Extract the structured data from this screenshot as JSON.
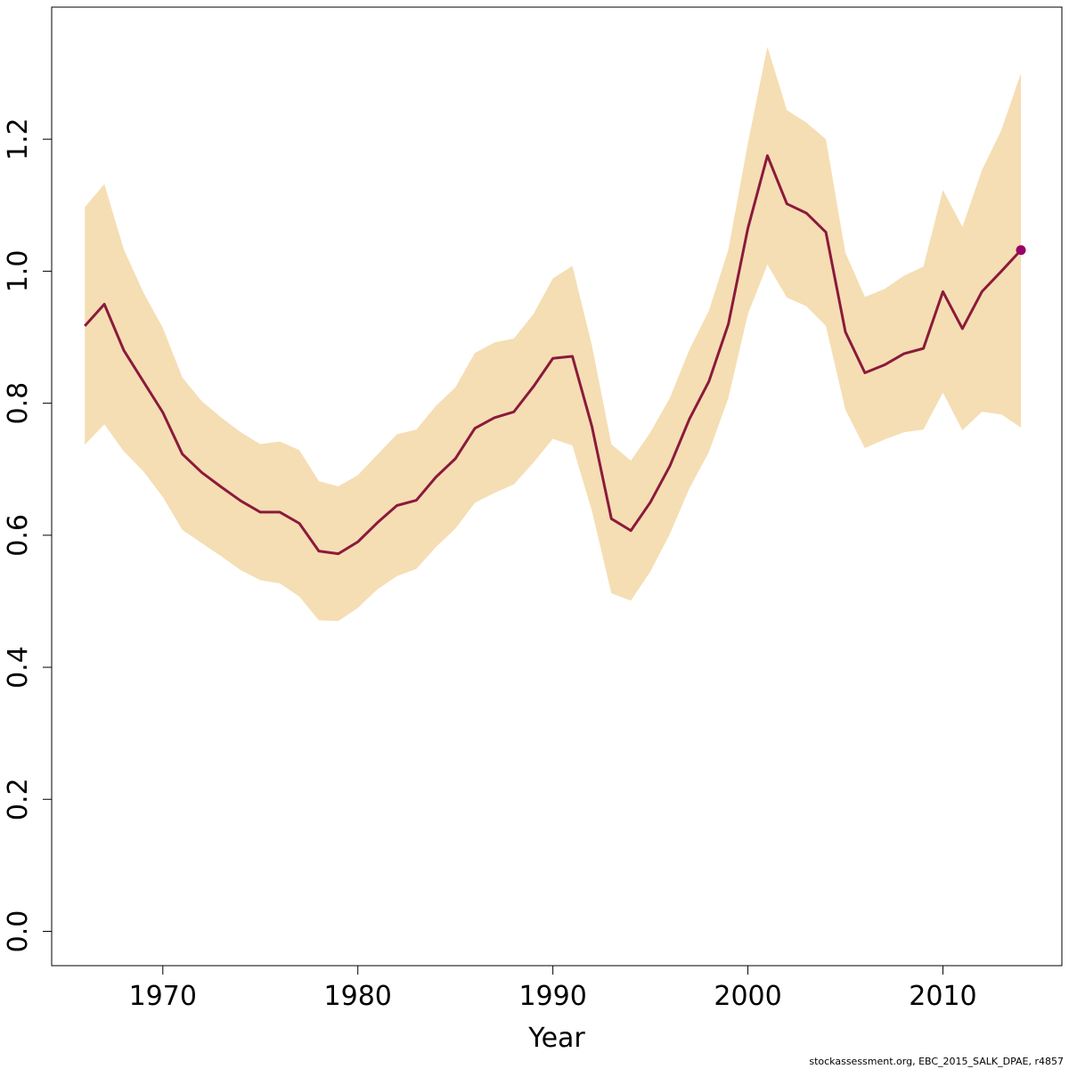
{
  "chart_data": {
    "type": "line",
    "title": "",
    "xlabel": "Year",
    "ylabel": "",
    "xlim": [
      1964.3,
      2016.1
    ],
    "ylim": [
      -0.052,
      1.4
    ],
    "x_ticks": [
      1970,
      1980,
      1990,
      2000,
      2010
    ],
    "y_ticks": [
      0.0,
      0.2,
      0.4,
      0.6,
      0.8,
      1.0,
      1.2
    ],
    "x_tick_labels": [
      "1970",
      "1980",
      "1990",
      "2000",
      "2010"
    ],
    "y_tick_labels": [
      "0.0",
      "0.2",
      "0.4",
      "0.6",
      "0.8",
      "1.0",
      "1.2"
    ],
    "grid": false,
    "colors": {
      "band": "#f5deb3",
      "line": "#8b1a3c",
      "last_point": "#990066",
      "axis": "#000000"
    },
    "x": [
      1966,
      1967,
      1968,
      1969,
      1970,
      1971,
      1972,
      1973,
      1974,
      1975,
      1976,
      1977,
      1978,
      1979,
      1980,
      1981,
      1982,
      1983,
      1984,
      1985,
      1986,
      1987,
      1988,
      1989,
      1990,
      1991,
      1992,
      1993,
      1994,
      1995,
      1996,
      1997,
      1998,
      1999,
      2000,
      2001,
      2002,
      2003,
      2004,
      2005,
      2006,
      2007,
      2008,
      2009,
      2010,
      2011,
      2012,
      2013,
      2014
    ],
    "series": [
      {
        "values": [
          0.917,
          0.95,
          0.88,
          0.833,
          0.786,
          0.723,
          0.695,
          0.673,
          0.652,
          0.635,
          0.635,
          0.618,
          0.576,
          0.572,
          0.59,
          0.619,
          0.645,
          0.653,
          0.688,
          0.716,
          0.762,
          0.778,
          0.787,
          0.825,
          0.868,
          0.871,
          0.765,
          0.625,
          0.607,
          0.65,
          0.705,
          0.776,
          0.833,
          0.92,
          1.065,
          1.175,
          1.102,
          1.088,
          1.059,
          0.908,
          0.846,
          0.858,
          0.875,
          0.883,
          0.969,
          0.913,
          0.969,
          1.0,
          1.032
        ]
      }
    ],
    "band": {
      "lower": [
        0.737,
        0.768,
        0.727,
        0.697,
        0.658,
        0.608,
        0.588,
        0.568,
        0.547,
        0.532,
        0.527,
        0.507,
        0.471,
        0.47,
        0.49,
        0.518,
        0.538,
        0.549,
        0.582,
        0.61,
        0.649,
        0.664,
        0.677,
        0.71,
        0.746,
        0.736,
        0.637,
        0.512,
        0.501,
        0.545,
        0.602,
        0.671,
        0.726,
        0.808,
        0.935,
        1.01,
        0.96,
        0.947,
        0.917,
        0.79,
        0.732,
        0.745,
        0.756,
        0.76,
        0.816,
        0.759,
        0.787,
        0.783,
        0.763
      ],
      "upper": [
        1.097,
        1.132,
        1.033,
        0.968,
        0.914,
        0.839,
        0.803,
        0.778,
        0.756,
        0.738,
        0.742,
        0.729,
        0.682,
        0.674,
        0.691,
        0.722,
        0.753,
        0.76,
        0.796,
        0.824,
        0.876,
        0.892,
        0.898,
        0.935,
        0.989,
        1.008,
        0.888,
        0.738,
        0.713,
        0.756,
        0.808,
        0.881,
        0.94,
        1.033,
        1.194,
        1.34,
        1.244,
        1.225,
        1.2,
        1.028,
        0.961,
        0.973,
        0.993,
        1.007,
        1.123,
        1.067,
        1.153,
        1.214,
        1.3
      ]
    }
  },
  "footer": {
    "credit": "stockassessment.org, EBC_2015_SALK_DPAE, r4857"
  }
}
